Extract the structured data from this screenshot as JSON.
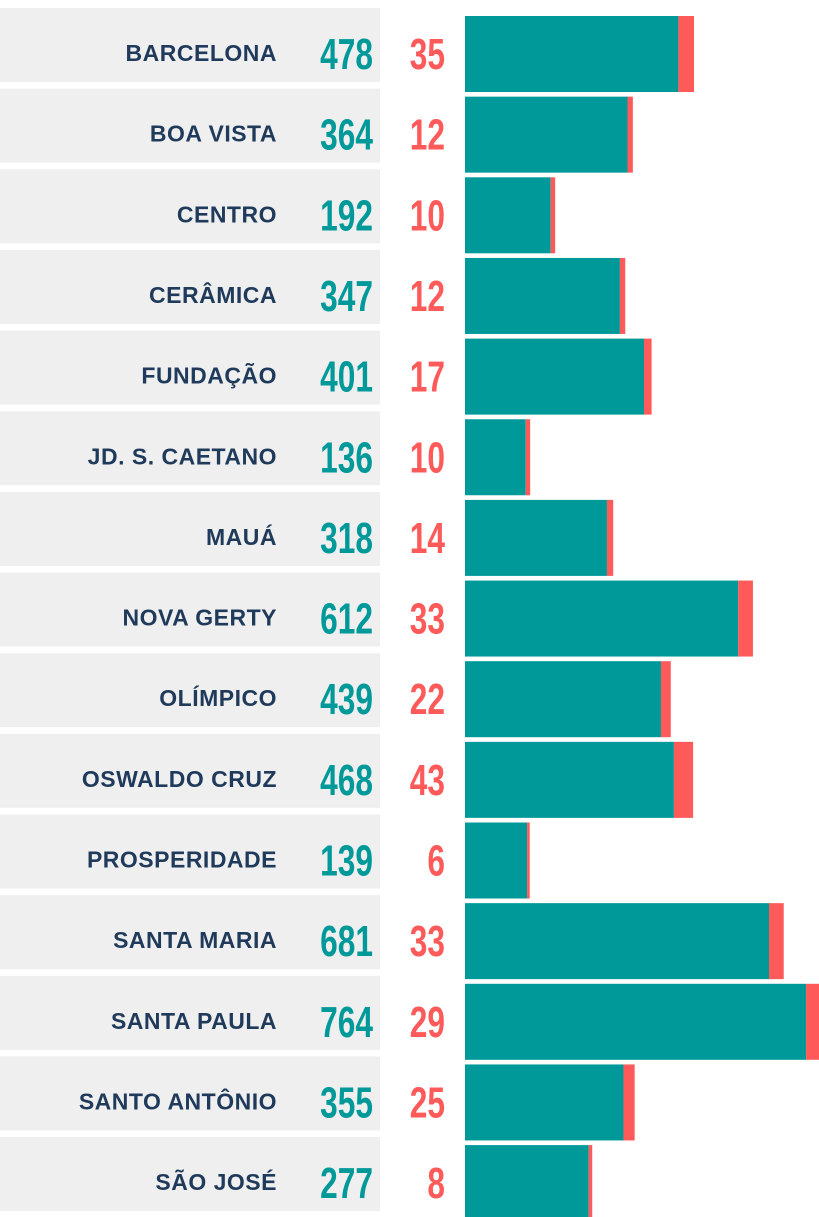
{
  "chart_data": {
    "type": "bar",
    "orientation": "horizontal",
    "stacked": true,
    "categories": [
      "BARCELONA",
      "BOA VISTA",
      "CENTRO",
      "CERÂMICA",
      "FUNDAÇÃO",
      "JD. S. CAETANO",
      "MAUÁ",
      "NOVA GERTY",
      "OLÍMPICO",
      "OSWALDO CRUZ",
      "PROSPERIDADE",
      "SANTA MARIA",
      "SANTA PAULA",
      "SANTO ANTÔNIO",
      "SÃO JOSÉ"
    ],
    "series": [
      {
        "color": "#00999a",
        "values": [
          478,
          364,
          192,
          347,
          401,
          136,
          318,
          612,
          439,
          468,
          139,
          681,
          764,
          355,
          277
        ]
      },
      {
        "color": "#ff5a5a",
        "values": [
          35,
          12,
          10,
          12,
          17,
          10,
          14,
          33,
          22,
          43,
          6,
          33,
          29,
          25,
          8
        ]
      }
    ]
  }
}
